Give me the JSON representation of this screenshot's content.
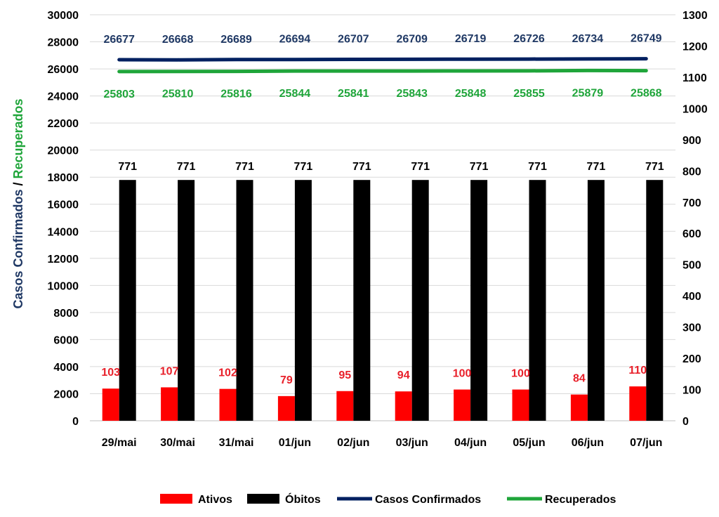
{
  "chart_data": {
    "type": "bar",
    "categories": [
      "29/mai",
      "30/mai",
      "31/mai",
      "01/jun",
      "02/jun",
      "03/jun",
      "04/jun",
      "05/jun",
      "06/jun",
      "07/jun"
    ],
    "ylabel": {
      "part1": "Casos Confirmados",
      "sep": " / ",
      "part2": "Recuperados"
    },
    "ylim_left": [
      0,
      30000
    ],
    "yticks_left": [
      0,
      2000,
      4000,
      6000,
      8000,
      10000,
      12000,
      14000,
      16000,
      18000,
      20000,
      22000,
      24000,
      26000,
      28000,
      30000
    ],
    "ylim_right": [
      0,
      1300
    ],
    "yticks_right": [
      0,
      100,
      200,
      300,
      400,
      500,
      600,
      700,
      800,
      900,
      1000,
      1100,
      1200,
      1300
    ],
    "grid": true,
    "legend_position": "bottom",
    "series": [
      {
        "name": "Ativos",
        "type": "bar",
        "axis": "right",
        "color": "#ff0000",
        "label_color": "#e8202a",
        "values": [
          103,
          107,
          102,
          79,
          95,
          94,
          100,
          100,
          84,
          110
        ]
      },
      {
        "name": "Óbitos",
        "type": "bar",
        "axis": "right",
        "color": "#000000",
        "label_color": "#000000",
        "values": [
          771,
          771,
          771,
          771,
          771,
          771,
          771,
          771,
          771,
          771
        ]
      },
      {
        "name": "Casos Confirmados",
        "type": "line",
        "axis": "left",
        "color": "#002060",
        "label_color": "#1f3864",
        "values": [
          26677,
          26668,
          26689,
          26694,
          26707,
          26709,
          26719,
          26726,
          26734,
          26749
        ]
      },
      {
        "name": "Recuperados",
        "type": "line",
        "axis": "left",
        "color": "#1fa53a",
        "label_color": "#1fa53a",
        "values": [
          25803,
          25810,
          25816,
          25844,
          25841,
          25843,
          25848,
          25855,
          25879,
          25868
        ]
      }
    ]
  }
}
